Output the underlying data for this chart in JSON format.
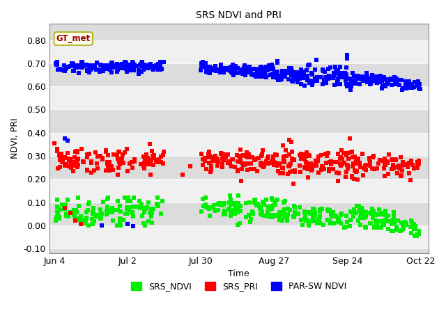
{
  "title": "SRS NDVI and PRI",
  "xlabel": "Time",
  "ylabel": "NDVI, PRI",
  "yticks": [
    -0.1,
    0.0,
    0.1,
    0.2,
    0.3,
    0.4,
    0.5,
    0.6,
    0.7,
    0.8
  ],
  "xtick_labels": [
    "Jun 4",
    "Jul 2",
    "Jul 30",
    "Aug 27",
    "Sep 24",
    "Oct 22"
  ],
  "xtick_days": [
    155,
    183,
    211,
    239,
    267,
    295
  ],
  "day_start": 155,
  "day_end": 295,
  "legend_labels": [
    "SRS_NDVI",
    "SRS_PRI",
    "PAR-SW NDVI"
  ],
  "legend_colors": [
    "#00ff00",
    "#ff0000",
    "#0000ff"
  ],
  "gt_met_box_color": "#fffff0",
  "gt_met_text_color": "#990000",
  "marker_size": 4,
  "title_fontsize": 10,
  "label_fontsize": 9,
  "tick_fontsize": 9,
  "band_dark": "#dcdcdc",
  "band_light": "#f0f0f0"
}
